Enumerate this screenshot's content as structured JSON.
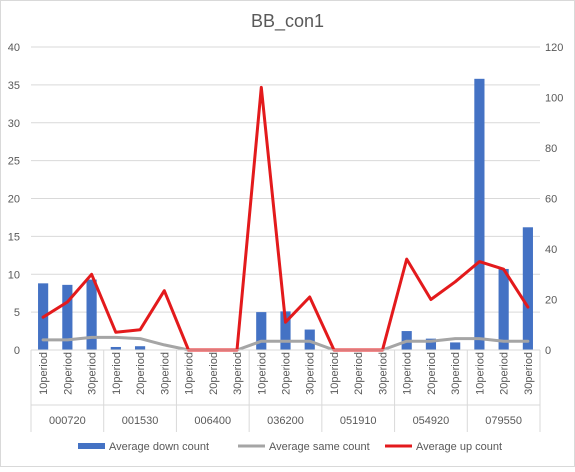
{
  "chart_data": {
    "type": "bar",
    "title": "BB_con1",
    "categories": [
      "10period",
      "20period",
      "30period",
      "10period",
      "20period",
      "30period",
      "10period",
      "20period",
      "30period",
      "10period",
      "20period",
      "30period",
      "10period",
      "20period",
      "30period",
      "10period",
      "20period",
      "30period",
      "10period",
      "20period",
      "30period"
    ],
    "groups": [
      "000720",
      "001530",
      "006400",
      "036200",
      "051910",
      "054920",
      "079550"
    ],
    "group_size": 3,
    "y_left": {
      "min": 0,
      "max": 40,
      "ticks": [
        "0",
        "5",
        "10",
        "15",
        "20",
        "25",
        "30",
        "35",
        "40"
      ]
    },
    "y_right": {
      "min": 0,
      "max": 120,
      "ticks": [
        "0",
        "20",
        "40",
        "60",
        "80",
        "100",
        "120"
      ]
    },
    "grid": true,
    "legend_position": "bottom",
    "series": [
      {
        "name": "Average down count",
        "kind": "bar",
        "axis": "left",
        "color": "#4472c4",
        "values": [
          8.8,
          8.6,
          9.3,
          0.4,
          0.5,
          0,
          0,
          0,
          0,
          5.0,
          5.1,
          2.7,
          0,
          0,
          0,
          2.5,
          1.5,
          1.0,
          35.8,
          10.7,
          16.2
        ]
      },
      {
        "name": "Average same count",
        "kind": "line",
        "axis": "right",
        "color": "#a5a5a5",
        "values": [
          4.0,
          4.0,
          5.0,
          5.0,
          4.5,
          2.0,
          0,
          0,
          0,
          3.5,
          3.5,
          3.5,
          0,
          0,
          0,
          3.5,
          3.5,
          4.5,
          4.5,
          3.5,
          3.5
        ]
      },
      {
        "name": "Average up count",
        "kind": "line",
        "axis": "right",
        "color": "#e31a1c",
        "values": [
          13.0,
          19.0,
          30.0,
          7.0,
          8.0,
          23.5,
          0,
          0,
          0,
          104.0,
          11.0,
          21.0,
          0,
          0,
          0,
          36.0,
          20.0,
          27.0,
          35.0,
          32.0,
          17.0
        ]
      }
    ]
  }
}
